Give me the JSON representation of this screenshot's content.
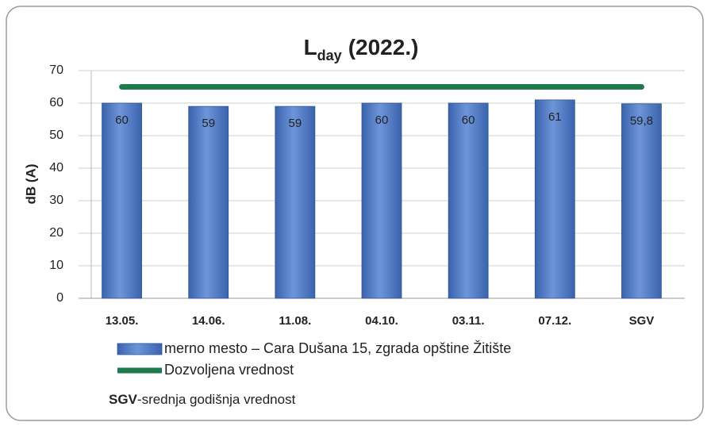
{
  "chart_data": {
    "type": "bar",
    "title": [
      "L",
      "day",
      "(2022.)"
    ],
    "y_label": "dB (A)",
    "categories": [
      "13.05.",
      "14.06.",
      "11.08.",
      "04.10.",
      "03.11.",
      "07.12.",
      "SGV"
    ],
    "series": [
      {
        "name": "merno mesto – Cara Dušana 15, zgrada opštine Žitište",
        "color": "#4a74c2",
        "type": "bar",
        "values": [
          60,
          59,
          59,
          60,
          60,
          61,
          59.8
        ],
        "value_labels": [
          "60",
          "59",
          "59",
          "60",
          "60",
          "61",
          "59,8"
        ]
      },
      {
        "name": "Dozvoljena vrednost",
        "color": "#1f7a4c",
        "type": "line",
        "values": [
          65,
          65,
          65,
          65,
          65,
          65,
          65
        ]
      }
    ],
    "ylim": [
      0,
      70
    ],
    "yticks": [
      0,
      10,
      20,
      30,
      40,
      50,
      60,
      70
    ],
    "grid": true,
    "footnote": {
      "term": "SGV",
      "text": "-srednja godišnja vrednost"
    }
  }
}
